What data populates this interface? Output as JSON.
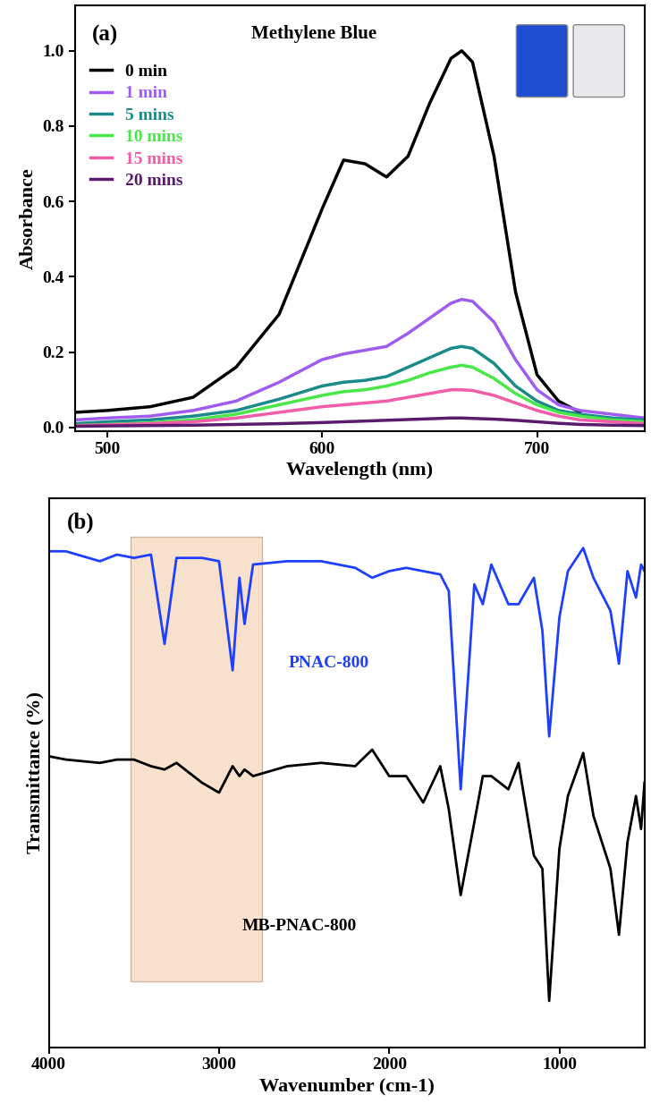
{
  "chart_data": [
    {
      "type": "line",
      "panel_label": "(a)",
      "title": "Methylene Blue",
      "x_label": "Wavelength (nm)",
      "y_label": "Absorbance",
      "x": [
        485,
        500,
        520,
        540,
        560,
        580,
        600,
        610,
        620,
        630,
        640,
        650,
        660,
        665,
        670,
        680,
        690,
        700,
        710,
        720,
        735,
        750
      ],
      "series": [
        {
          "name": "0 min",
          "color": "#000000",
          "values": [
            0.04,
            0.045,
            0.055,
            0.08,
            0.16,
            0.3,
            0.58,
            0.71,
            0.7,
            0.665,
            0.72,
            0.86,
            0.98,
            1.0,
            0.97,
            0.72,
            0.36,
            0.14,
            0.07,
            0.04,
            null,
            null
          ]
        },
        {
          "name": "1 min",
          "color": "#a05cf0",
          "values": [
            0.02,
            0.025,
            0.03,
            0.045,
            0.07,
            0.12,
            0.18,
            0.195,
            0.205,
            0.215,
            0.25,
            0.29,
            0.33,
            0.34,
            0.335,
            0.28,
            0.18,
            0.1,
            0.06,
            0.045,
            0.035,
            0.025
          ]
        },
        {
          "name": "5 mins",
          "color": "#1a8a8a",
          "values": [
            0.01,
            0.015,
            0.02,
            0.03,
            0.045,
            0.075,
            0.11,
            0.12,
            0.125,
            0.135,
            0.16,
            0.185,
            0.21,
            0.215,
            0.21,
            0.17,
            0.11,
            0.07,
            0.045,
            0.035,
            0.025,
            0.02
          ]
        },
        {
          "name": "10 mins",
          "color": "#48e848",
          "values": [
            0.005,
            0.008,
            0.012,
            0.02,
            0.035,
            0.06,
            0.085,
            0.095,
            0.1,
            0.11,
            0.125,
            0.145,
            0.16,
            0.165,
            0.16,
            0.13,
            0.09,
            0.06,
            0.04,
            0.03,
            0.02,
            0.015
          ]
        },
        {
          "name": "15 mins",
          "color": "#f25ca8",
          "values": [
            0.005,
            0.007,
            0.01,
            0.015,
            0.025,
            0.04,
            0.055,
            0.06,
            0.065,
            0.07,
            0.08,
            0.09,
            0.1,
            0.1,
            0.098,
            0.085,
            0.065,
            0.045,
            0.03,
            0.02,
            0.015,
            0.01
          ]
        },
        {
          "name": "20 mins",
          "color": "#5a1a6e",
          "values": [
            0.003,
            0.004,
            0.005,
            0.006,
            0.008,
            0.01,
            0.013,
            0.015,
            0.017,
            0.019,
            0.021,
            0.023,
            0.025,
            0.025,
            0.024,
            0.022,
            0.019,
            0.015,
            0.011,
            0.008,
            0.006,
            0.005
          ]
        }
      ],
      "xlim": [
        485,
        750
      ],
      "xticks": [
        500,
        600,
        700
      ],
      "ylim": [
        -0.01,
        1.12
      ],
      "yticks": [
        0.0,
        0.2,
        0.4,
        0.6,
        0.8,
        1.0
      ],
      "legend": "upper left"
    },
    {
      "type": "line",
      "panel_label": "(b)",
      "x_label": "Wavenumber (cm-1)",
      "y_label": "Transmittance (%)",
      "x": [
        4000,
        3900,
        3700,
        3600,
        3500,
        3400,
        3320,
        3250,
        3100,
        3000,
        2920,
        2880,
        2850,
        2800,
        2600,
        2400,
        2200,
        2100,
        2000,
        1900,
        1800,
        1700,
        1650,
        1580,
        1500,
        1450,
        1400,
        1300,
        1240,
        1150,
        1100,
        1060,
        1000,
        950,
        860,
        800,
        700,
        650,
        600,
        550,
        520,
        500
      ],
      "series": [
        {
          "name": "PNAC-800",
          "color": "#1f3fff",
          "values": [
            9.0,
            9.0,
            8.85,
            8.95,
            8.9,
            8.95,
            7.6,
            8.9,
            8.9,
            8.85,
            7.2,
            8.6,
            7.9,
            8.8,
            8.85,
            8.85,
            8.75,
            8.6,
            8.7,
            8.75,
            8.7,
            8.65,
            8.4,
            5.4,
            8.5,
            8.2,
            8.8,
            8.2,
            8.2,
            8.6,
            7.8,
            6.2,
            8.0,
            8.7,
            9.05,
            8.6,
            8.1,
            7.3,
            8.7,
            8.3,
            8.8,
            8.7
          ]
        },
        {
          "name": "MB-PNAC-800",
          "color": "#000000",
          "values": [
            5.9,
            5.85,
            5.8,
            5.85,
            5.85,
            5.75,
            5.7,
            5.8,
            5.5,
            5.35,
            5.75,
            5.6,
            5.7,
            5.6,
            5.75,
            5.8,
            5.75,
            6.0,
            5.6,
            5.6,
            5.2,
            5.75,
            5.1,
            3.8,
            4.9,
            5.6,
            5.6,
            5.4,
            5.8,
            4.4,
            4.2,
            2.2,
            4.5,
            5.3,
            5.95,
            5.0,
            4.2,
            3.2,
            4.6,
            5.3,
            4.8,
            5.5
          ]
        }
      ],
      "highlight_x": [
        3520,
        2750
      ],
      "xlim": [
        4000,
        500
      ],
      "xticks": [
        4000,
        3000,
        2000,
        1000
      ],
      "ylim": [
        1.5,
        9.8
      ],
      "yticks": [],
      "tick_labels": "x"
    }
  ]
}
